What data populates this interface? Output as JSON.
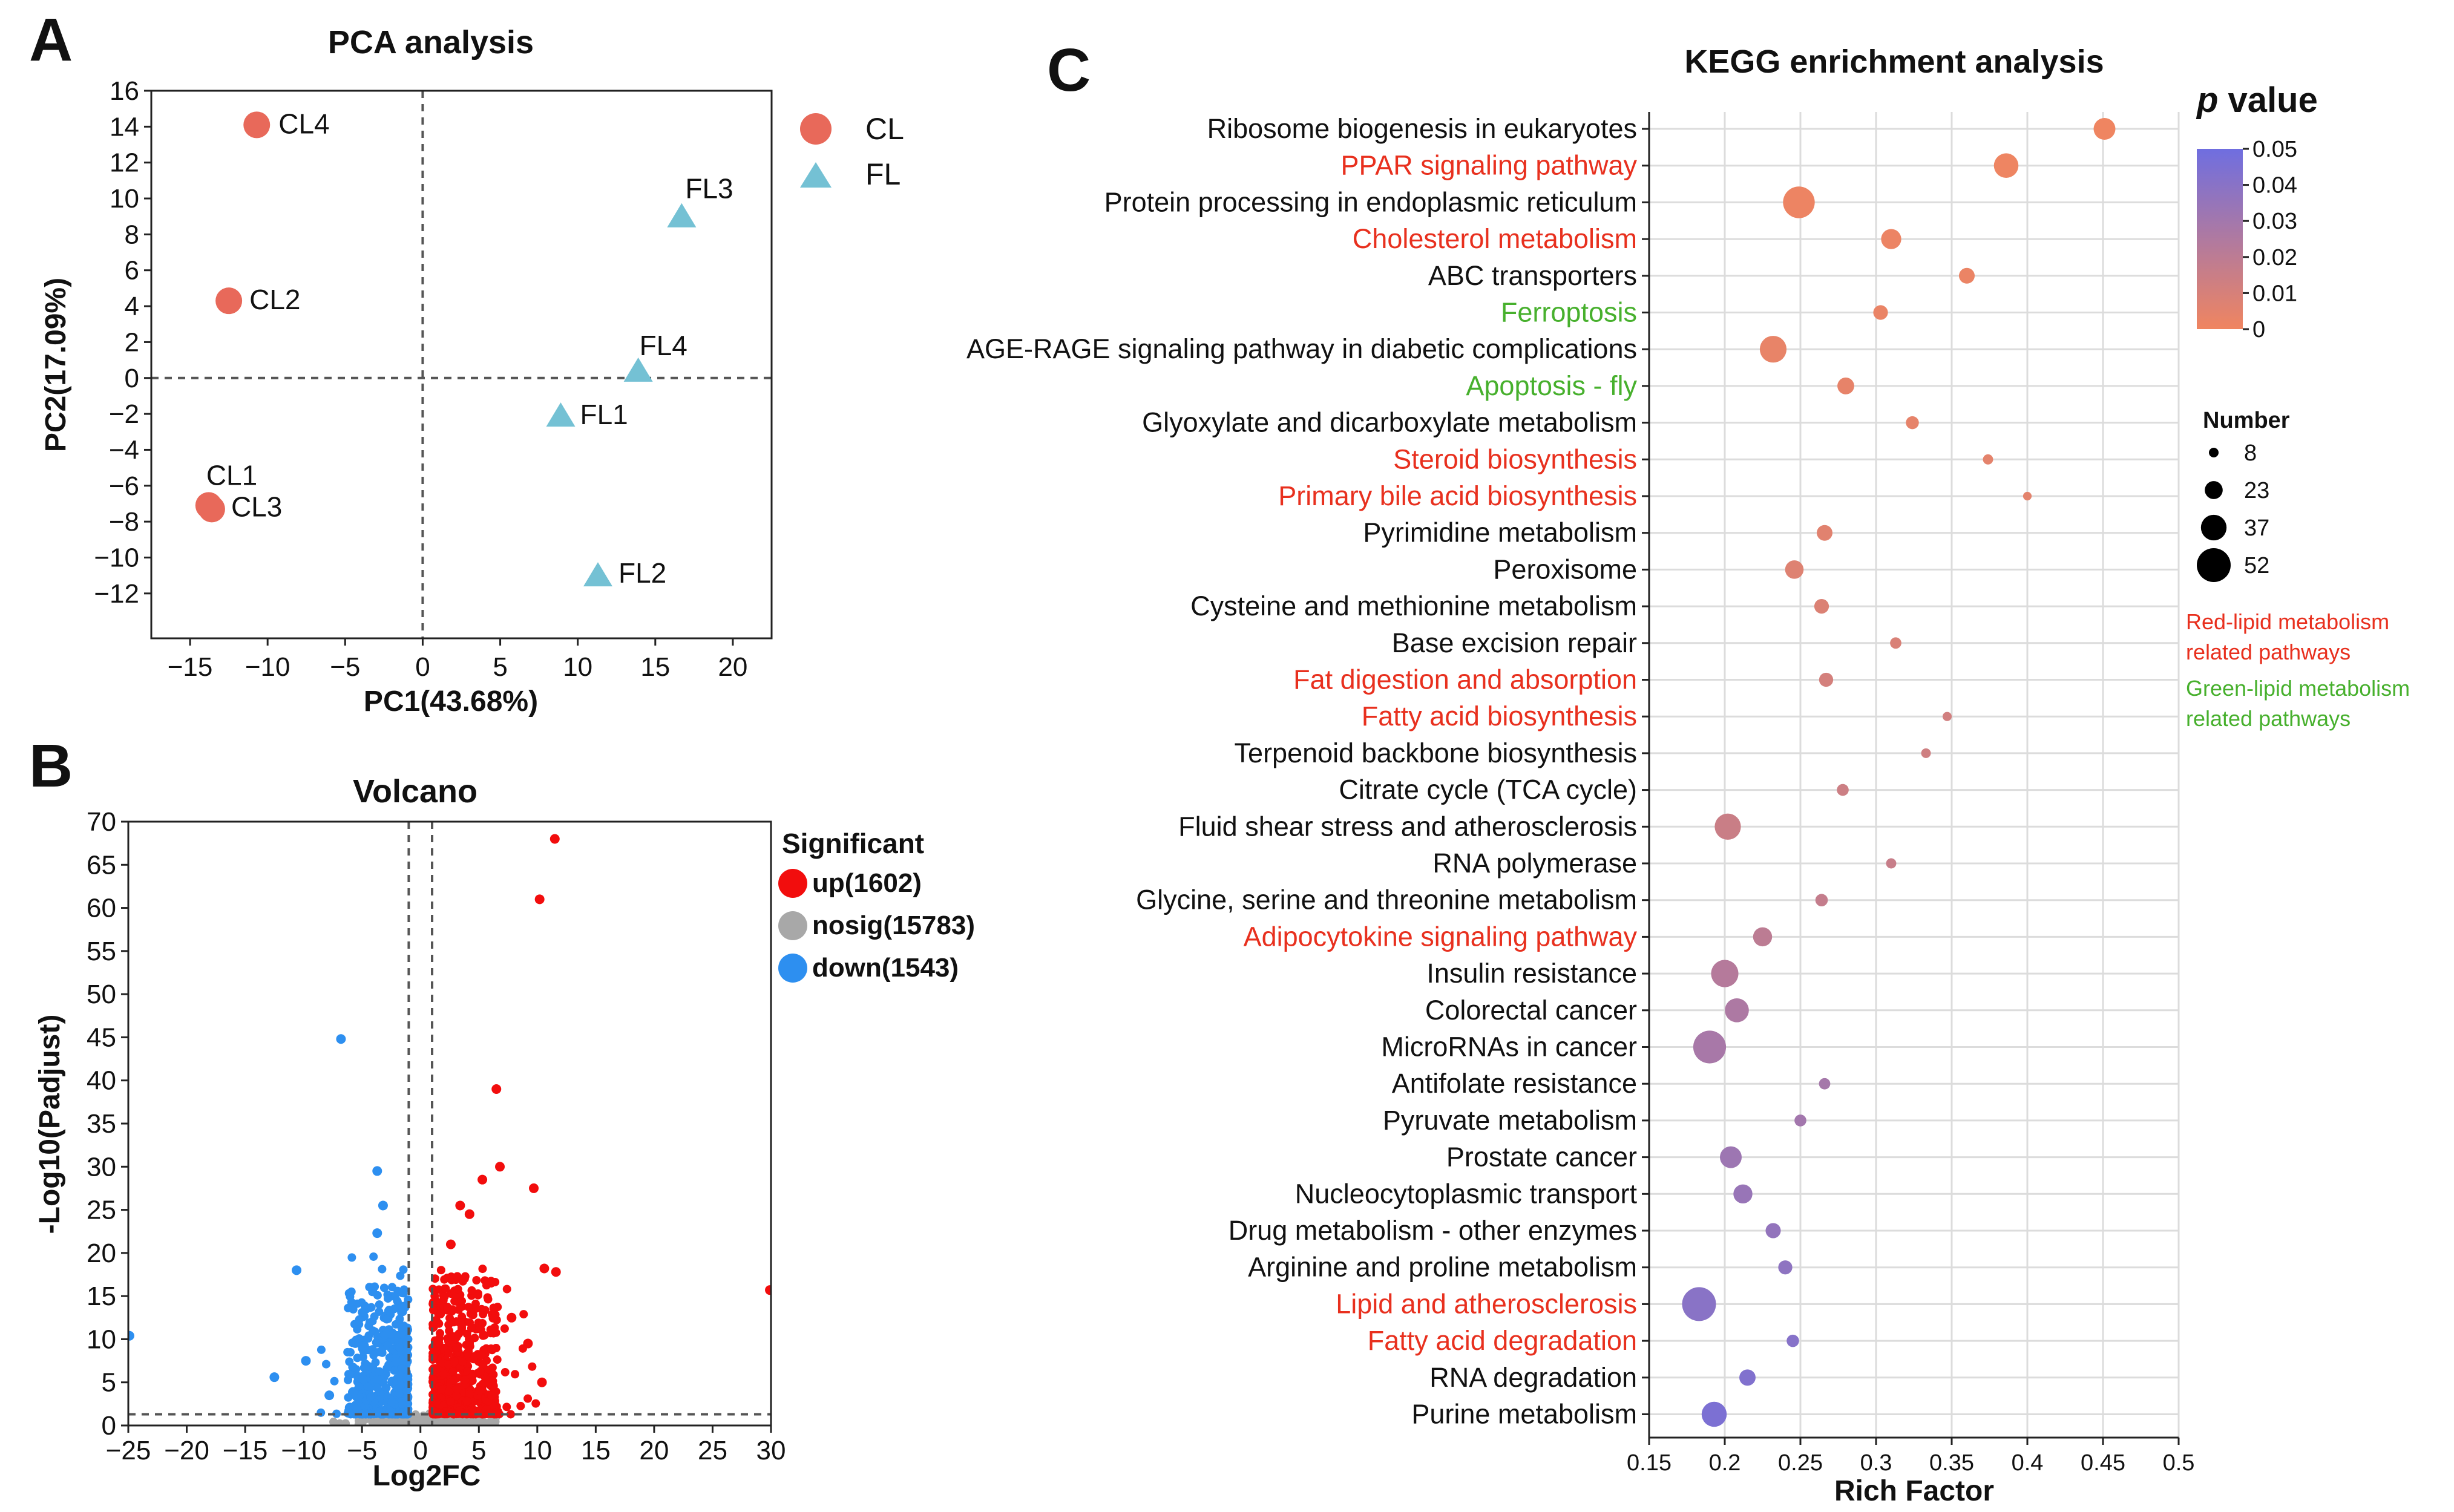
{
  "panels": {
    "a": "A",
    "b": "B",
    "c": "C"
  },
  "colors": {
    "cl": "#e8695a",
    "fl": "#74c1d4",
    "up": "#f20d0d",
    "nosig": "#a8a8a8",
    "down": "#2d8ff0",
    "p_low": "#f08560",
    "p_high": "#6f6ee0",
    "red_text": "#e8301e",
    "green_text": "#47b02d"
  },
  "chart_data": [
    {
      "id": "pca",
      "type": "scatter",
      "title": "PCA analysis",
      "xlabel": "PC1(43.68%)",
      "ylabel": "PC2(17.09%)",
      "xlim": [
        -17.5,
        22.5
      ],
      "ylim": [
        -14.5,
        16
      ],
      "xticks": [
        -15,
        -10,
        -5,
        0,
        5,
        10,
        15,
        20
      ],
      "yticks": [
        16,
        14,
        12,
        10,
        8,
        6,
        4,
        2,
        0,
        -2,
        -4,
        -6,
        -8,
        -10,
        -12
      ],
      "legend": [
        {
          "group": "CL",
          "label": "CL"
        },
        {
          "group": "FL",
          "label": "FL"
        }
      ],
      "points": [
        {
          "label": "CL4",
          "group": "CL",
          "x": -10.7,
          "y": 14.1
        },
        {
          "label": "CL2",
          "group": "CL",
          "x": -12.5,
          "y": 4.3
        },
        {
          "label": "CL1",
          "group": "CL",
          "x": -13.8,
          "y": -7.1
        },
        {
          "label": "CL3",
          "group": "CL",
          "x": -13.6,
          "y": -7.3
        },
        {
          "label": "FL3",
          "group": "FL",
          "x": 16.7,
          "y": 9.0
        },
        {
          "label": "FL4",
          "group": "FL",
          "x": 13.9,
          "y": 0.4
        },
        {
          "label": "FL1",
          "group": "FL",
          "x": 8.9,
          "y": -2.1
        },
        {
          "label": "FL2",
          "group": "FL",
          "x": 11.3,
          "y": -11.0
        }
      ]
    },
    {
      "id": "volcano",
      "type": "scatter",
      "title": "Volcano",
      "xlabel": "Log2FC",
      "ylabel": "-Log10(Padjust)",
      "xlim": [
        -25,
        30
      ],
      "ylim": [
        0,
        70
      ],
      "xticks": [
        -25,
        -20,
        -15,
        -10,
        -5,
        0,
        5,
        10,
        15,
        20,
        25,
        30
      ],
      "yticks": [
        70,
        65,
        60,
        55,
        50,
        45,
        40,
        35,
        30,
        25,
        20,
        15,
        10,
        5,
        0
      ],
      "thresholds": {
        "x": [
          -1,
          1
        ],
        "y": 1.3
      },
      "legend_title": "Significant",
      "legend": [
        {
          "group": "up",
          "label": "up(1602)"
        },
        {
          "group": "nosig",
          "label": "nosig(15783)"
        },
        {
          "group": "down",
          "label": "down(1543)"
        }
      ],
      "counts": {
        "up": 1602,
        "nosig": 15783,
        "down": 1543
      },
      "highlighted_points": [
        {
          "group": "up",
          "x": 11.5,
          "y": 68
        },
        {
          "group": "up",
          "x": 10.2,
          "y": 61
        },
        {
          "group": "up",
          "x": 6.5,
          "y": 39
        },
        {
          "group": "up",
          "x": 6.8,
          "y": 30
        },
        {
          "group": "up",
          "x": 5.3,
          "y": 28.5
        },
        {
          "group": "up",
          "x": 9.7,
          "y": 27.5
        },
        {
          "group": "up",
          "x": 3.4,
          "y": 25.5
        },
        {
          "group": "up",
          "x": 4.2,
          "y": 24.5
        },
        {
          "group": "up",
          "x": 2.6,
          "y": 21
        },
        {
          "group": "up",
          "x": 11.6,
          "y": 17.8
        },
        {
          "group": "up",
          "x": 10.6,
          "y": 18.2
        },
        {
          "group": "up",
          "x": 29.9,
          "y": 15.7
        },
        {
          "group": "up",
          "x": 7.8,
          "y": 12.5
        },
        {
          "group": "up",
          "x": 9.2,
          "y": 9.5
        },
        {
          "group": "up",
          "x": 10.4,
          "y": 5.0
        },
        {
          "group": "down",
          "x": -6.8,
          "y": 44.8
        },
        {
          "group": "down",
          "x": -3.7,
          "y": 29.5
        },
        {
          "group": "down",
          "x": -3.2,
          "y": 25.5
        },
        {
          "group": "down",
          "x": -3.7,
          "y": 22.3
        },
        {
          "group": "down",
          "x": -10.6,
          "y": 18.0
        },
        {
          "group": "down",
          "x": -24.9,
          "y": 10.4
        },
        {
          "group": "down",
          "x": -12.5,
          "y": 5.6
        },
        {
          "group": "down",
          "x": -9.8,
          "y": 7.5
        },
        {
          "group": "down",
          "x": -7.8,
          "y": 3.5
        }
      ]
    },
    {
      "id": "kegg",
      "type": "scatter",
      "title": "KEGG enrichment analysis",
      "xlabel": "Rich Factor",
      "xlim": [
        0.15,
        0.5
      ],
      "xticks": [
        0.15,
        0.2,
        0.25,
        0.3,
        0.35,
        0.4,
        0.45,
        0.5
      ],
      "color_legend": {
        "title_p": "p",
        "title_rest": " value",
        "range": [
          0,
          0.05
        ],
        "ticks": [
          0.05,
          0.04,
          0.03,
          0.02,
          0.01,
          0
        ]
      },
      "size_legend": {
        "title": "Number",
        "values": [
          8,
          23,
          37,
          52
        ]
      },
      "notes": [
        {
          "text": "Red-lipid metabolism",
          "category": "red"
        },
        {
          "text": "related pathways",
          "category": "red"
        },
        {
          "text": "Green-lipid metabolism",
          "category": "green"
        },
        {
          "text": "related pathways",
          "category": "green"
        }
      ],
      "pathways": [
        {
          "name": "Ribosome biogenesis in eukaryotes",
          "category": "black",
          "rich": 0.451,
          "count": 30,
          "p": 0.0004
        },
        {
          "name": "PPAR signaling pathway",
          "category": "red",
          "rich": 0.386,
          "count": 35,
          "p": 0.0008
        },
        {
          "name": "Protein processing in endoplasmic reticulum",
          "category": "black",
          "rich": 0.249,
          "count": 48,
          "p": 0.0012
        },
        {
          "name": "Cholesterol metabolism",
          "category": "red",
          "rich": 0.31,
          "count": 27,
          "p": 0.0016
        },
        {
          "name": "ABC transporters",
          "category": "black",
          "rich": 0.36,
          "count": 19,
          "p": 0.002
        },
        {
          "name": "Ferroptosis",
          "category": "green",
          "rich": 0.303,
          "count": 17,
          "p": 0.0025
        },
        {
          "name": "AGE-RAGE signaling pathway in diabetic complications",
          "category": "black",
          "rich": 0.232,
          "count": 39,
          "p": 0.003
        },
        {
          "name": "Apoptosis - fly",
          "category": "green",
          "rich": 0.28,
          "count": 21,
          "p": 0.0035
        },
        {
          "name": "Glyoxylate and dicarboxylate metabolism",
          "category": "black",
          "rich": 0.324,
          "count": 14,
          "p": 0.004
        },
        {
          "name": "Steroid biosynthesis",
          "category": "red",
          "rich": 0.374,
          "count": 9,
          "p": 0.0045
        },
        {
          "name": "Primary bile acid biosynthesis",
          "category": "red",
          "rich": 0.4,
          "count": 6,
          "p": 0.005
        },
        {
          "name": "Pyrimidine metabolism",
          "category": "black",
          "rich": 0.266,
          "count": 19,
          "p": 0.006
        },
        {
          "name": "Peroxisome",
          "category": "black",
          "rich": 0.246,
          "count": 24,
          "p": 0.007
        },
        {
          "name": "Cysteine and methionine metabolism",
          "category": "black",
          "rich": 0.264,
          "count": 17,
          "p": 0.008
        },
        {
          "name": "Base excision repair",
          "category": "black",
          "rich": 0.313,
          "count": 11,
          "p": 0.009
        },
        {
          "name": "Fat digestion and absorption",
          "category": "red",
          "rich": 0.267,
          "count": 16,
          "p": 0.011
        },
        {
          "name": "Fatty acid biosynthesis",
          "category": "red",
          "rich": 0.347,
          "count": 7,
          "p": 0.012
        },
        {
          "name": "Terpenoid backbone biosynthesis",
          "category": "black",
          "rich": 0.333,
          "count": 8,
          "p": 0.013
        },
        {
          "name": "Citrate cycle (TCA cycle)",
          "category": "black",
          "rich": 0.278,
          "count": 12,
          "p": 0.014
        },
        {
          "name": "Fluid shear stress and atherosclerosis",
          "category": "black",
          "rich": 0.202,
          "count": 38,
          "p": 0.015
        },
        {
          "name": "RNA polymerase",
          "category": "black",
          "rich": 0.31,
          "count": 9,
          "p": 0.016
        },
        {
          "name": "Glycine, serine and threonine metabolism",
          "category": "black",
          "rich": 0.264,
          "count": 13,
          "p": 0.017
        },
        {
          "name": "Adipocytokine signaling pathway",
          "category": "red",
          "rich": 0.225,
          "count": 25,
          "p": 0.02
        },
        {
          "name": "Insulin resistance",
          "category": "black",
          "rich": 0.2,
          "count": 40,
          "p": 0.023
        },
        {
          "name": "Colorectal cancer",
          "category": "black",
          "rich": 0.208,
          "count": 34,
          "p": 0.026
        },
        {
          "name": "MicroRNAs in cancer",
          "category": "black",
          "rich": 0.19,
          "count": 50,
          "p": 0.028
        },
        {
          "name": "Antifolate resistance",
          "category": "black",
          "rich": 0.266,
          "count": 11,
          "p": 0.029
        },
        {
          "name": "Pyruvate metabolism",
          "category": "black",
          "rich": 0.25,
          "count": 12,
          "p": 0.03
        },
        {
          "name": "Prostate cancer",
          "category": "black",
          "rich": 0.204,
          "count": 30,
          "p": 0.032
        },
        {
          "name": "Nucleocytoplasmic transport",
          "category": "black",
          "rich": 0.212,
          "count": 25,
          "p": 0.034
        },
        {
          "name": "Drug metabolism - other enzymes",
          "category": "black",
          "rich": 0.232,
          "count": 18,
          "p": 0.036
        },
        {
          "name": "Arginine and proline metabolism",
          "category": "black",
          "rich": 0.24,
          "count": 16,
          "p": 0.038
        },
        {
          "name": "Lipid and atherosclerosis",
          "category": "red",
          "rich": 0.183,
          "count": 52,
          "p": 0.04
        },
        {
          "name": "Fatty acid degradation",
          "category": "red",
          "rich": 0.245,
          "count": 13,
          "p": 0.041
        },
        {
          "name": "RNA degradation",
          "category": "black",
          "rich": 0.215,
          "count": 20,
          "p": 0.043
        },
        {
          "name": "Purine metabolism",
          "category": "black",
          "rich": 0.193,
          "count": 36,
          "p": 0.045
        }
      ]
    }
  ]
}
